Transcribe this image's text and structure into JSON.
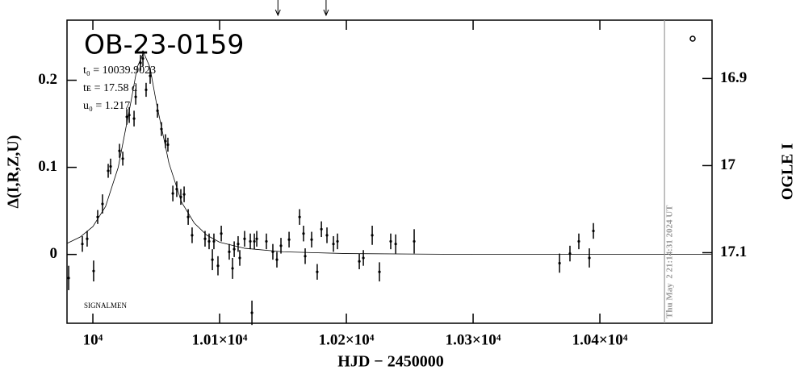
{
  "chart_data": {
    "type": "scatter",
    "title": "OB-23-0159",
    "annotations": [
      "t₀ = 10039.9023",
      "tᴇ = 17.58 d",
      "u₀ = 1.217"
    ],
    "footnote": "SIGNALMEN",
    "xlabel": "HJD − 2450000",
    "ylabel": "Δ(I,R,Z,U)",
    "y2label": "OGLE I",
    "xlim": [
      9979.6,
      10488.5
    ],
    "ylim": [
      -0.079,
      0.269
    ],
    "y2lim": [
      17.181,
      16.833
    ],
    "xticks": [
      {
        "value": 10000,
        "label": "10⁴"
      },
      {
        "value": 10100,
        "label": "1.01×10⁴"
      },
      {
        "value": 10200,
        "label": "1.02×10⁴"
      },
      {
        "value": 10300,
        "label": "1.03×10⁴"
      },
      {
        "value": 10400,
        "label": "1.04×10⁴"
      }
    ],
    "yticks": [
      0,
      0.1,
      0.2
    ],
    "y2ticks": [
      16.9,
      17,
      17.1
    ],
    "color": "#000000",
    "points": {
      "x": [
        9980.9,
        9991.7,
        9995.5,
        10000.6,
        10003.8,
        10007.6,
        10012.1,
        10014,
        10021,
        10023.6,
        10026.8,
        10028.7,
        10032.5,
        10033.8,
        10037.6,
        10039.5,
        10042,
        10045.2,
        10051,
        10054.1,
        10057.3,
        10059.2,
        10063.1,
        10066.2,
        10069.4,
        10072,
        10075.2,
        10078.3,
        10088.5,
        10091.7,
        10094.3,
        10095.5,
        10098.7,
        10101.3,
        10107.6,
        10110.2,
        10111.5,
        10114.6,
        10115.9,
        10119.7,
        10124.2,
        10125.5,
        10127.4,
        10129.3,
        10136.9,
        10142,
        10145.2,
        10148.4,
        10154.8,
        10163.1,
        10166.2,
        10167.5,
        10172.6,
        10177,
        10180.3,
        10184.7,
        10189.8,
        10193,
        10210.2,
        10213.4,
        10220.4,
        10226.1,
        10235,
        10238.9,
        10253.5,
        10368.2,
        10376.4,
        10383.4,
        10391.7,
        10394.9
      ],
      "y": [
        -0.027,
        0.012,
        0.018,
        -0.019,
        0.043,
        0.058,
        0.096,
        0.101,
        0.119,
        0.11,
        0.158,
        0.16,
        0.156,
        0.181,
        0.22,
        0.225,
        0.189,
        0.205,
        0.165,
        0.144,
        0.13,
        0.126,
        0.07,
        0.075,
        0.066,
        0.069,
        0.043,
        0.022,
        0.018,
        0.015,
        -0.006,
        0.015,
        -0.013,
        0.024,
        0.003,
        -0.016,
        0.006,
        0.012,
        -0.004,
        0.018,
        0.015,
        -0.067,
        0.015,
        0.018,
        0.015,
        0.003,
        -0.006,
        0.01,
        0.017,
        0.043,
        0.024,
        -0.002,
        0.017,
        -0.02,
        0.029,
        0.022,
        0.012,
        0.015,
        -0.008,
        -0.004,
        0.022,
        -0.02,
        0.015,
        0.012,
        0.015,
        -0.01,
        0.001,
        0.015,
        -0.004,
        0.027
      ],
      "err": [
        0.014,
        0.009,
        0.009,
        0.012,
        0.008,
        0.011,
        0.008,
        0.009,
        0.008,
        0.008,
        0.009,
        0.009,
        0.009,
        0.009,
        0.009,
        0.009,
        0.008,
        0.009,
        0.008,
        0.008,
        0.008,
        0.008,
        0.009,
        0.009,
        0.009,
        0.009,
        0.009,
        0.009,
        0.009,
        0.009,
        0.012,
        0.009,
        0.011,
        0.009,
        0.009,
        0.012,
        0.009,
        0.009,
        0.009,
        0.009,
        0.009,
        0.014,
        0.009,
        0.009,
        0.009,
        0.009,
        0.009,
        0.009,
        0.009,
        0.009,
        0.009,
        0.009,
        0.009,
        0.009,
        0.009,
        0.009,
        0.009,
        0.009,
        0.009,
        0.009,
        0.011,
        0.011,
        0.009,
        0.011,
        0.014,
        0.011,
        0.009,
        0.009,
        0.011,
        0.009
      ]
    },
    "model": {
      "x": [
        9980,
        9990,
        10000,
        10010,
        10020,
        10030,
        10035,
        10040,
        10045,
        10050,
        10060,
        10070,
        10080,
        10090,
        10100,
        10120,
        10150,
        10200,
        10300,
        10488
      ],
      "y": [
        0.013,
        0.02,
        0.032,
        0.055,
        0.1,
        0.175,
        0.215,
        0.232,
        0.215,
        0.175,
        0.105,
        0.06,
        0.036,
        0.022,
        0.014,
        0.007,
        0.003,
        0.001,
        0,
        0
      ]
    },
    "date_line": {
      "x": 10451,
      "label": "Thu May  2 21:14:31 2024 UT"
    },
    "arrows_x": [
      10146,
      10184
    ]
  }
}
